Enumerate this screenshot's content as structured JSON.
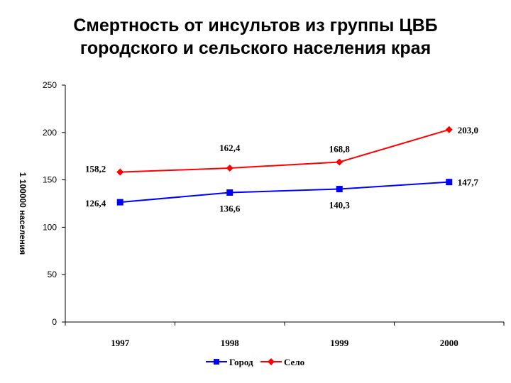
{
  "page": {
    "title_line1": "Смертность от инсультов из группы ЦВБ",
    "title_line2": "городского и сельского населения края"
  },
  "chart_data": {
    "type": "line",
    "title": "Смертность от инсультов из группы ЦВБ городского и сельского населения края",
    "ylabel": "1 100000 населения",
    "xlabel": "",
    "categories": [
      "1997",
      "1998",
      "1999",
      "2000"
    ],
    "ylim": [
      0,
      250
    ],
    "yticks": [
      "0",
      "50",
      "100",
      "150",
      "200",
      "250"
    ],
    "grid": false,
    "legend_position": "bottom",
    "series": [
      {
        "name": "Город",
        "values": [
          126.4,
          136.6,
          140.3,
          147.7
        ],
        "labels": [
          "126,4",
          "136,6",
          "140,3",
          "147,7"
        ],
        "color": "#0000ff",
        "marker": "square"
      },
      {
        "name": "Село",
        "values": [
          158.2,
          162.4,
          168.8,
          203.0
        ],
        "labels": [
          "158,2",
          "162,4",
          "168,8",
          "203,0"
        ],
        "color": "#ff0000",
        "marker": "diamond"
      }
    ]
  }
}
